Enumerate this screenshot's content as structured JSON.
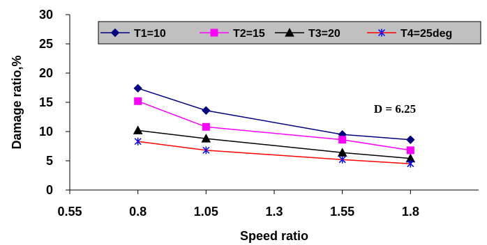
{
  "chart_data": {
    "type": "line",
    "xlabel": "Speed ratio",
    "ylabel": "Damage ratio,%",
    "x_ticks": [
      "0.55",
      "0.8",
      "1.05",
      "1.3",
      "1.55",
      "1.8"
    ],
    "y_ticks": [
      "0",
      "5",
      "10",
      "15",
      "20",
      "25",
      "30"
    ],
    "ylim": [
      0,
      30
    ],
    "grid": false,
    "legend_position": "top",
    "annotation": "D = 6.25",
    "categories": [
      "0.8",
      "1.05",
      "1.55",
      "1.8"
    ],
    "series": [
      {
        "name": "T1=10",
        "color": "#000080",
        "marker": "diamond",
        "values": [
          17.4,
          13.6,
          9.5,
          8.6
        ]
      },
      {
        "name": "T2=15",
        "color": "#FF00FF",
        "marker": "square",
        "values": [
          15.2,
          10.8,
          8.6,
          6.8
        ]
      },
      {
        "name": "T3=20",
        "color": "#000000",
        "marker": "triangle",
        "values": [
          10.2,
          8.8,
          6.4,
          5.4
        ]
      },
      {
        "name": "T4=25deg",
        "color": "#FF0000",
        "marker": "star",
        "marker_color": "#0000FF",
        "values": [
          8.3,
          6.8,
          5.2,
          4.5
        ]
      }
    ]
  }
}
